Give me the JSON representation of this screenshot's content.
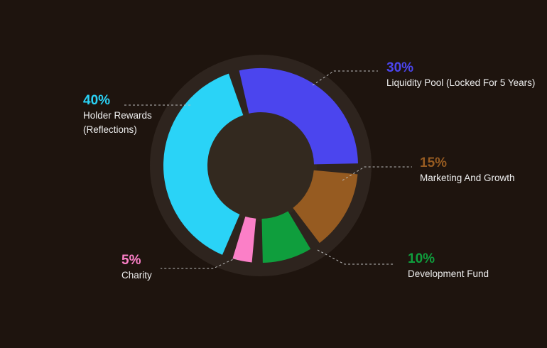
{
  "chart_data": {
    "type": "pie",
    "categories": [
      "Holder Rewards (Reflections)",
      "Liquidity Pool (Locked For 5 Years)",
      "Marketing And Growth",
      "Development Fund",
      "Charity"
    ],
    "values": [
      40,
      30,
      15,
      10,
      5
    ],
    "percent_labels": [
      "40%",
      "30%",
      "15%",
      "10%",
      "5%"
    ],
    "colors": [
      "#2ad3f7",
      "#4b45ee",
      "#965b21",
      "#0f9e3d",
      "#fb7fc7"
    ],
    "style": "donut",
    "legend": "callout-labels"
  },
  "labels": {
    "holder": {
      "pct": "40%",
      "name_line1": "Holder Rewards",
      "name_line2": "(Reflections)",
      "color": "#2ad3f7"
    },
    "liquidity": {
      "pct": "30%",
      "name": "Liquidity Pool (Locked For 5 Years)",
      "color": "#4b45ee"
    },
    "marketing": {
      "pct": "15%",
      "name": "Marketing And Growth",
      "color": "#965b21"
    },
    "development": {
      "pct": "10%",
      "name": "Development Fund",
      "color": "#0f9e3d"
    },
    "charity": {
      "pct": "5%",
      "name": "Charity",
      "color": "#fb7fc7"
    }
  },
  "colors": {
    "background": "#1e140e",
    "ring": "#2e241e",
    "hole": "#33291f",
    "leader": "#bcbcbc"
  }
}
